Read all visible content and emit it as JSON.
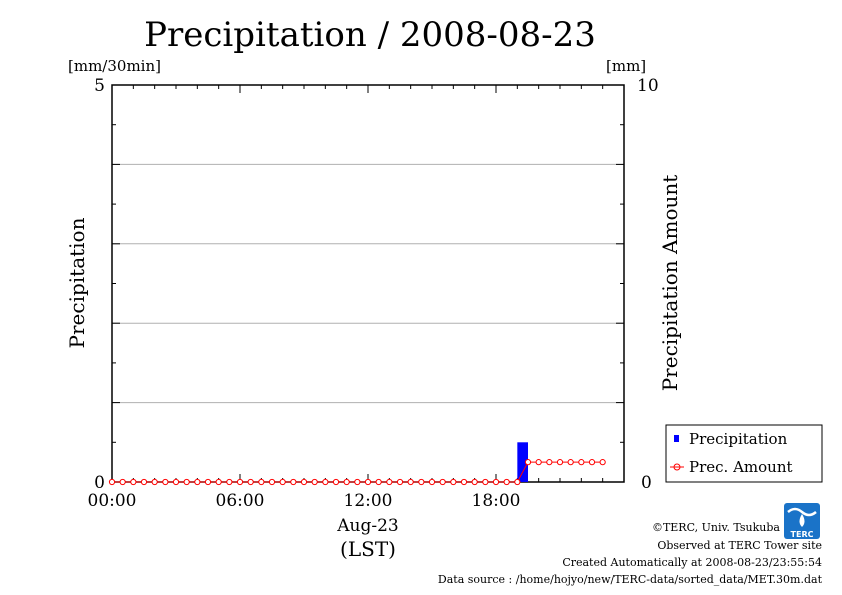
{
  "chart_data": {
    "type": "bar",
    "title": "Precipitation / 2008-08-23",
    "left_unit": "[mm/30min]",
    "right_unit": "[mm]",
    "ylabel": "Precipitation",
    "y2label": "Precipitation Amount",
    "ylim": [
      0,
      5
    ],
    "y2lim": [
      0,
      10
    ],
    "y_ticks": [
      "5",
      "0"
    ],
    "y2_ticks": [
      "10",
      "0"
    ],
    "x_ticks": [
      "00:00",
      "06:00",
      "12:00",
      "18:00"
    ],
    "x_date": "Aug-23",
    "x_zone": "(LST)",
    "x_range_hours": [
      0,
      24
    ],
    "grid": true,
    "legend_position": "bottom-right outside",
    "series": [
      {
        "name": "Precipitation",
        "kind": "bar",
        "axis": "left",
        "color": "#0000ff",
        "x_hours": [
          19.0
        ],
        "values": [
          0.5
        ]
      },
      {
        "name": "Prec. Amount",
        "kind": "line",
        "axis": "right",
        "color": "#ff0000",
        "x_hours": [
          0,
          0.5,
          1,
          1.5,
          2,
          2.5,
          3,
          3.5,
          4,
          4.5,
          5,
          5.5,
          6,
          6.5,
          7,
          7.5,
          8,
          8.5,
          9,
          9.5,
          10,
          10.5,
          11,
          11.5,
          12,
          12.5,
          13,
          13.5,
          14,
          14.5,
          15,
          15.5,
          16,
          16.5,
          17,
          17.5,
          18,
          18.5,
          19,
          19.5,
          20,
          20.5,
          21,
          21.5,
          22,
          22.5,
          23
        ],
        "values": [
          0,
          0,
          0,
          0,
          0,
          0,
          0,
          0,
          0,
          0,
          0,
          0,
          0,
          0,
          0,
          0,
          0,
          0,
          0,
          0,
          0,
          0,
          0,
          0,
          0,
          0,
          0,
          0,
          0,
          0,
          0,
          0,
          0,
          0,
          0,
          0,
          0,
          0,
          0,
          0.5,
          0.5,
          0.5,
          0.5,
          0.5,
          0.5,
          0.5,
          0.5
        ]
      }
    ]
  },
  "footer": {
    "copyright": "©TERC, Univ. Tsukuba",
    "observed": "Observed at TERC Tower site",
    "created": "Created Automatically at 2008-08-23/23:55:54",
    "source": "Data source : /home/hojyo/new/TERC-data/sorted_data/MET.30m.dat",
    "logo_text": "TERC"
  }
}
